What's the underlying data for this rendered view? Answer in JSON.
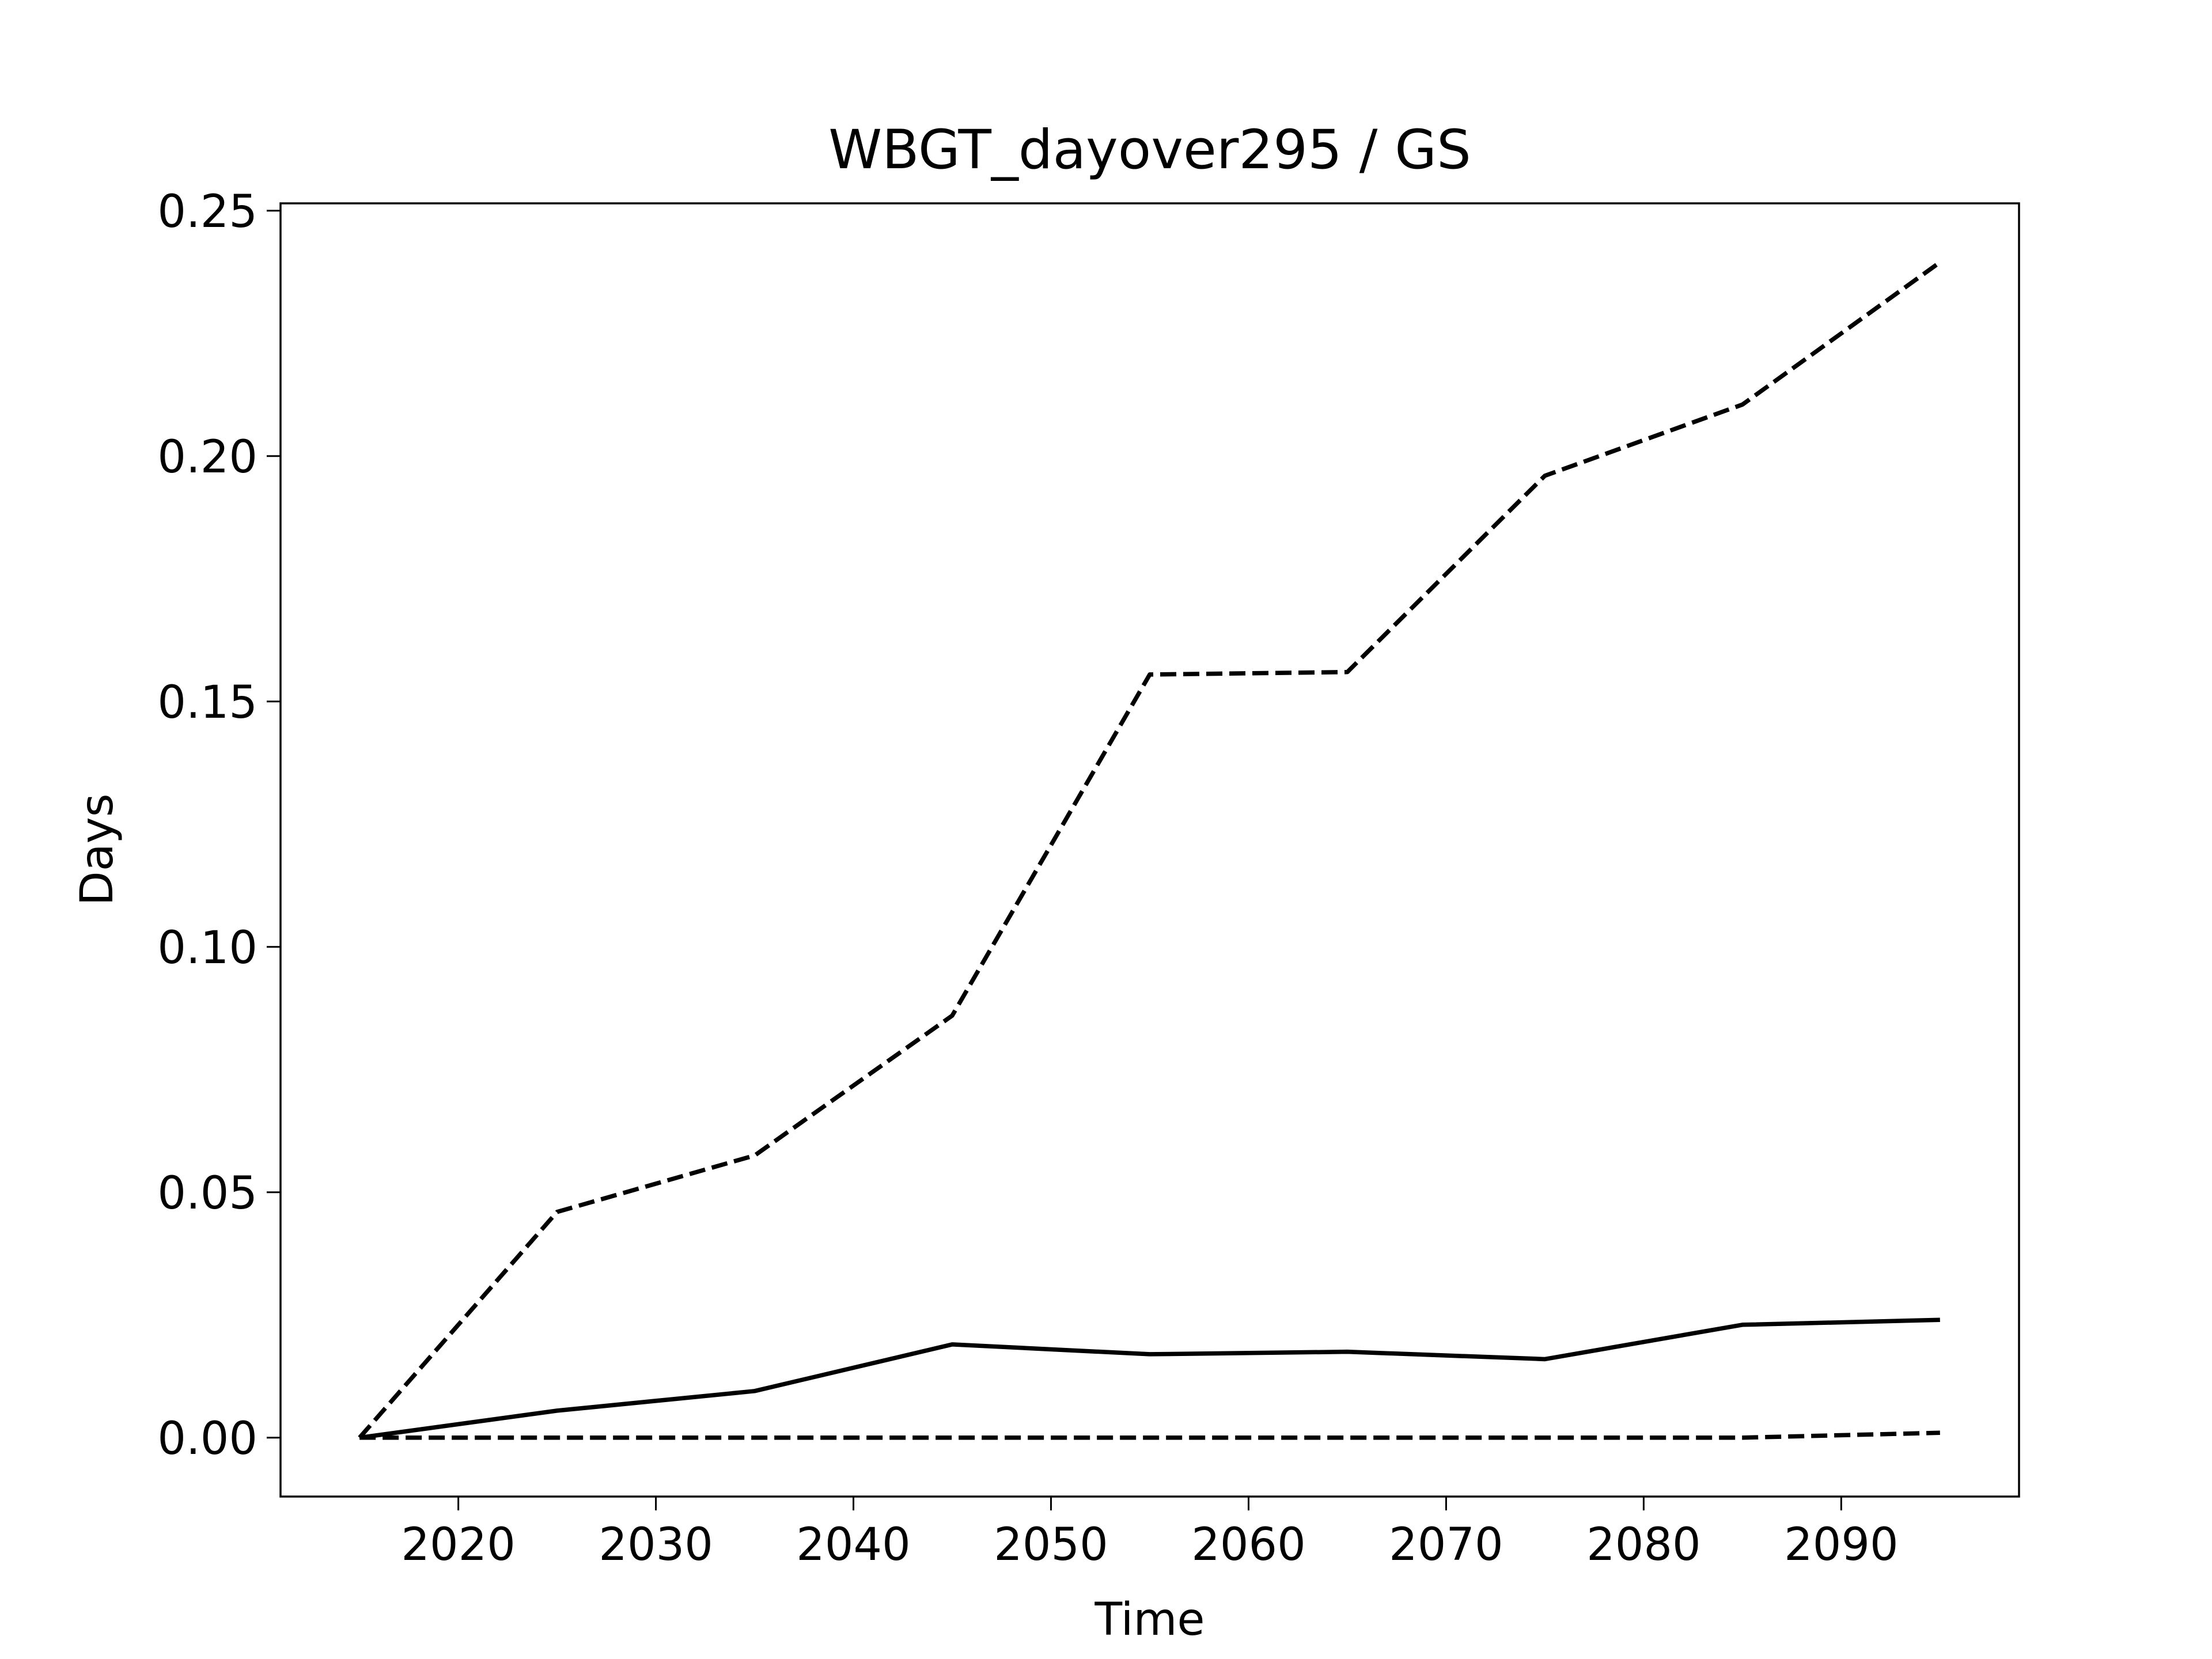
{
  "chart_data": {
    "type": "line",
    "title": "WBGT_dayover295 / GS",
    "xlabel": "Time",
    "ylabel": "Days",
    "x": [
      2015,
      2025,
      2035,
      2045,
      2055,
      2065,
      2075,
      2085,
      2095
    ],
    "series": [
      {
        "color": "#000000",
        "linestyle": "dashed",
        "values": [
          0,
          0.046,
          0.0575,
          0.086,
          0.1555,
          0.156,
          0.196,
          0.2105,
          0.2395
        ]
      },
      {
        "color": "#000000",
        "linestyle": "solid",
        "values": [
          0,
          0.0055,
          0.0095,
          0.019,
          0.017,
          0.0175,
          0.016,
          0.023,
          0.024
        ]
      },
      {
        "color": "#000000",
        "linestyle": "dashed",
        "values": [
          0,
          0,
          0,
          0,
          0,
          0,
          0,
          0,
          0.001
        ]
      }
    ],
    "xlim": [
      2011,
      2099
    ],
    "xticks": [
      2020,
      2030,
      2040,
      2050,
      2060,
      2070,
      2080,
      2090
    ],
    "ylim": [
      -0.012,
      0.2515
    ],
    "yticks": [
      {
        "value": 0,
        "label": "0.00"
      },
      {
        "value": 0.05,
        "label": "0.05"
      },
      {
        "value": 0.1,
        "label": "0.10"
      },
      {
        "value": 0.15,
        "label": "0.15"
      },
      {
        "value": 0.2,
        "label": "0.20"
      },
      {
        "value": 0.25,
        "label": "0.25"
      }
    ],
    "grid": false
  }
}
